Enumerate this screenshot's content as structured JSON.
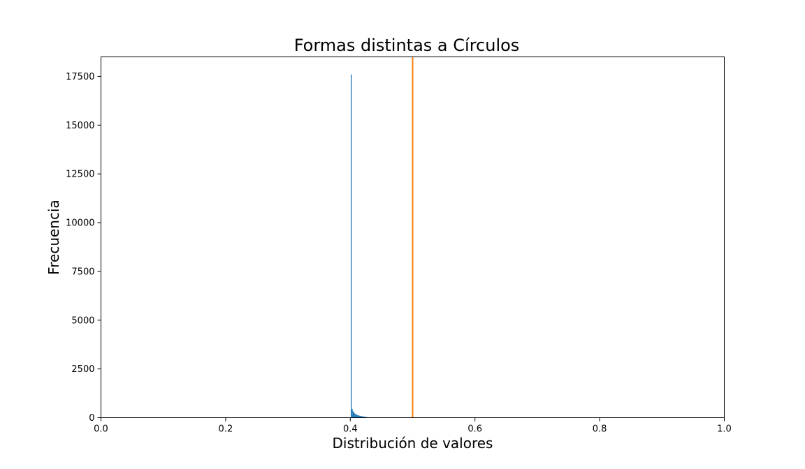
{
  "chart_data": {
    "type": "bar",
    "title": "Formas distintas a Círculos",
    "xlabel": "Distribución de valores",
    "ylabel": "Frecuencia",
    "xlim": [
      0.0,
      1.0
    ],
    "ylim": [
      0,
      18500
    ],
    "x_ticks": [
      0.0,
      0.2,
      0.4,
      0.6,
      0.8,
      1.0
    ],
    "x_tick_labels": [
      "0.0",
      "0.2",
      "0.4",
      "0.6",
      "0.8",
      "1.0"
    ],
    "y_ticks": [
      0,
      2500,
      5000,
      7500,
      10000,
      12500,
      15000,
      17500
    ],
    "y_tick_labels": [
      "0",
      "2500",
      "5000",
      "7500",
      "10000",
      "12500",
      "15000",
      "17500"
    ],
    "grid": false,
    "histogram": {
      "color": "#1f77b4",
      "bin_width": 0.0015,
      "bins": [
        {
          "x": 0.4015,
          "value": 17600
        },
        {
          "x": 0.403,
          "value": 450
        },
        {
          "x": 0.4045,
          "value": 330
        },
        {
          "x": 0.406,
          "value": 260
        },
        {
          "x": 0.4075,
          "value": 210
        },
        {
          "x": 0.409,
          "value": 175
        },
        {
          "x": 0.4105,
          "value": 150
        },
        {
          "x": 0.412,
          "value": 130
        },
        {
          "x": 0.4135,
          "value": 115
        },
        {
          "x": 0.415,
          "value": 100
        },
        {
          "x": 0.4165,
          "value": 90
        },
        {
          "x": 0.418,
          "value": 80
        },
        {
          "x": 0.4195,
          "value": 70
        },
        {
          "x": 0.421,
          "value": 62
        },
        {
          "x": 0.4225,
          "value": 55
        },
        {
          "x": 0.424,
          "value": 48
        },
        {
          "x": 0.4255,
          "value": 40
        },
        {
          "x": 0.427,
          "value": 30
        },
        {
          "x": 0.4285,
          "value": 20
        },
        {
          "x": 0.43,
          "value": 12
        }
      ]
    },
    "reference_line": {
      "x": 0.5,
      "color": "#ff7f0e"
    }
  }
}
